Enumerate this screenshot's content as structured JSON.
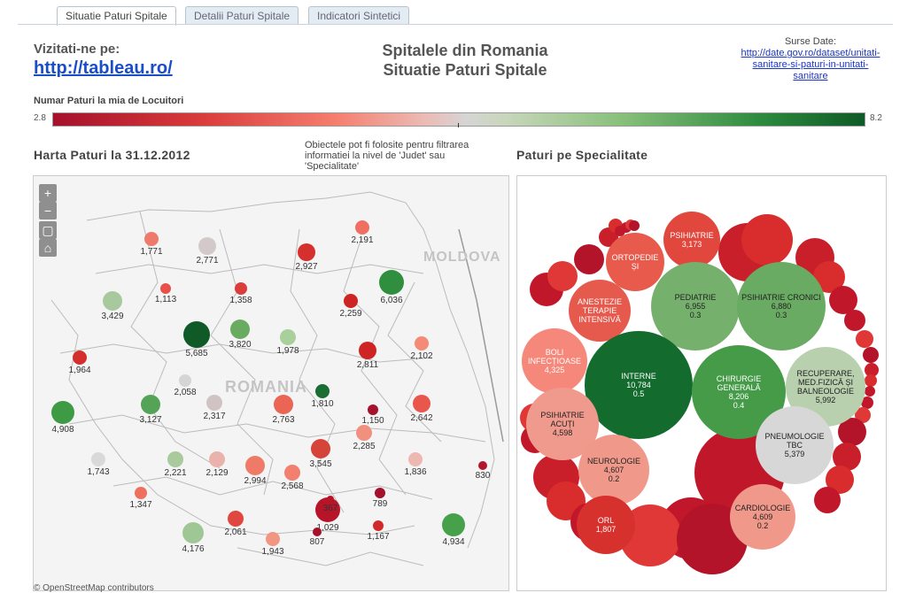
{
  "tabs": [
    {
      "label": "Situatie Paturi Spitale",
      "active": true
    },
    {
      "label": "Detalii Paturi Spitale",
      "active": false
    },
    {
      "label": "Indicatori Sintetici",
      "active": false
    }
  ],
  "header": {
    "visit_label": "Vizitati-ne pe:",
    "visit_link": "http://tableau.ro/",
    "title_line1": "Spitalele din Romania",
    "title_line2": "Situatie Paturi Spitale",
    "source_label": "Surse Date:",
    "source_link": "http://date.gov.ro/dataset/unitati-sanitare-si-paturi-in-unitati-sanitare"
  },
  "legend": {
    "title": "Numar Paturi la mia de Locuitori",
    "min": "2.8",
    "max": "8.2",
    "colors": [
      "#a5102b",
      "#f57f6f",
      "#d5d5d5",
      "#88c07b",
      "#0f5a26"
    ]
  },
  "map": {
    "title": "Harta Paturi la 31.12.2012",
    "note": "Obiectele pot fi folosite pentru filtrarea informatiei la nivel de 'Judet' sau 'Specialitate'",
    "label_country": "ROMANIA",
    "label_neighbor": "MOLDOVA",
    "attribution": "© OpenStreetMap contributors",
    "controls": [
      "zoom-in-icon",
      "zoom-out-icon",
      "select-icon",
      "home-icon"
    ],
    "counties": [
      {
        "value": "1,771",
        "color": "#ef7a6c"
      },
      {
        "value": "2,771",
        "color": "#d3c9c9"
      },
      {
        "value": "2,927",
        "color": "#d6302e"
      },
      {
        "value": "2,191",
        "color": "#ef6f61"
      },
      {
        "value": "1,113",
        "color": "#e8504a"
      },
      {
        "value": "1,358",
        "color": "#dc3d3b"
      },
      {
        "value": "3,429",
        "color": "#a7c99d"
      },
      {
        "value": "6,036",
        "color": "#2f8f3f"
      },
      {
        "value": "2,259",
        "color": "#cf2424"
      },
      {
        "value": "5,685",
        "color": "#0f5a26"
      },
      {
        "value": "3,820",
        "color": "#6aab62"
      },
      {
        "value": "1,978",
        "color": "#a9cf9b"
      },
      {
        "value": "1,964",
        "color": "#d3302d"
      },
      {
        "value": "2,811",
        "color": "#cf2424"
      },
      {
        "value": "2,102",
        "color": "#f48a78"
      },
      {
        "value": "2,058",
        "color": "#d5d5d5"
      },
      {
        "value": "1,810",
        "color": "#1b6e31"
      },
      {
        "value": "4,908",
        "color": "#3f9a45"
      },
      {
        "value": "3,127",
        "color": "#55a357"
      },
      {
        "value": "2,317",
        "color": "#d1c3c3"
      },
      {
        "value": "2,763",
        "color": "#ea6553"
      },
      {
        "value": "1,150",
        "color": "#a5122b"
      },
      {
        "value": "2,642",
        "color": "#e8564c"
      },
      {
        "value": "2,285",
        "color": "#f1907f"
      },
      {
        "value": "1,743",
        "color": "#d9d9d9"
      },
      {
        "value": "2,221",
        "color": "#a8ca9c"
      },
      {
        "value": "2,129",
        "color": "#e9b3ab"
      },
      {
        "value": "2,994",
        "color": "#f07a68"
      },
      {
        "value": "3,545",
        "color": "#d64339"
      },
      {
        "value": "1,836",
        "color": "#ecb8b1"
      },
      {
        "value": "830",
        "color": "#b3162c"
      },
      {
        "value": "2,568",
        "color": "#f37f6f"
      },
      {
        "value": "1,347",
        "color": "#ef6f5f"
      },
      {
        "value": "1,029",
        "color": "#b7142a"
      },
      {
        "value": "789",
        "color": "#a5102b"
      },
      {
        "value": "2,061",
        "color": "#e0473f"
      },
      {
        "value": "4,176",
        "color": "#9fc796"
      },
      {
        "value": "1,943",
        "color": "#f29583"
      },
      {
        "value": "367",
        "color": "#b7142a"
      },
      {
        "value": "807",
        "color": "#a5102b"
      },
      {
        "value": "1,167",
        "color": "#d22a2a"
      },
      {
        "value": "4,934",
        "color": "#47a04a"
      }
    ]
  },
  "specialties": {
    "title": "Paturi pe Specialitate",
    "bubbles": [
      {
        "name": "PSIHIATRIE",
        "value": "3,173",
        "ratio": "",
        "color": "#e2473e"
      },
      {
        "name": "ORTOPEDIE ȘI",
        "value": "",
        "ratio": "",
        "color": "#e85a4c"
      },
      {
        "name": "PEDIATRIE",
        "value": "6,955",
        "ratio": "0.3",
        "color": "#75b06d"
      },
      {
        "name": "PSIHIATRIE CRONICI",
        "value": "6,880",
        "ratio": "0.3",
        "color": "#6aab63"
      },
      {
        "name": "ANESTEZIE TERAPIE INTENSIVĂ",
        "value": "",
        "ratio": "",
        "color": "#e65a4d"
      },
      {
        "name": "BOLI INFECȚIOASE",
        "value": "4,325",
        "ratio": "",
        "color": "#f5887a"
      },
      {
        "name": "INTERNE",
        "value": "10,784",
        "ratio": "0.5",
        "color": "#136b2e"
      },
      {
        "name": "CHIRURGIE GENERALĂ",
        "value": "8,206",
        "ratio": "0.4",
        "color": "#459b48"
      },
      {
        "name": "RECUPERARE, MED.FIZICĂ ȘI BALNEOLOGIE",
        "value": "5,992",
        "ratio": "",
        "color": "#b8d0ae"
      },
      {
        "name": "PSIHIATRIE ACUȚI",
        "value": "4,598",
        "ratio": "",
        "color": "#f09a8d"
      },
      {
        "name": "NEUROLOGIE",
        "value": "4,607",
        "ratio": "0.2",
        "color": "#f0998a"
      },
      {
        "name": "PNEUMOLOGIE TBC",
        "value": "5,379",
        "ratio": "",
        "color": "#d7d7d7"
      },
      {
        "name": "CARDIOLOGIE",
        "value": "4,609",
        "ratio": "0.2",
        "color": "#f0998b"
      },
      {
        "name": "ORL",
        "value": "1,807",
        "ratio": "",
        "color": "#d7312d"
      }
    ]
  }
}
